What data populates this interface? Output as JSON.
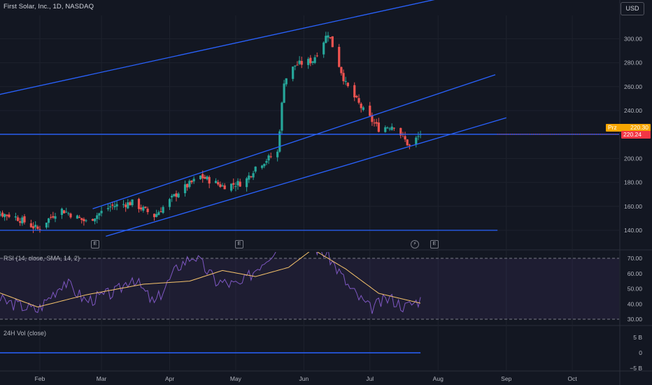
{
  "header": {
    "symbol_line": "First Solar, Inc., 1D, NASDAQ",
    "currency": "USD"
  },
  "tags": {
    "prz": "Prz",
    "prz_value": "220.30",
    "last_price": "220.24"
  },
  "events": [
    {
      "icon": "E",
      "name": "earnings-icon"
    },
    {
      "icon": "E",
      "name": "earnings-icon"
    },
    {
      "icon": "⚡",
      "name": "split-icon"
    },
    {
      "icon": "E",
      "name": "earnings-icon"
    }
  ],
  "colors": {
    "background": "#131722",
    "up": "#26a69a",
    "down": "#ef5350",
    "channel": "#2962ff",
    "rsi": "#7e57c2",
    "rsi_ma": "#f7c46c",
    "prz_tag": "#f7a600",
    "price_tag": "#f23645"
  },
  "chart_data": [
    {
      "type": "candlestick",
      "title": "First Solar, Inc., 1D, NASDAQ",
      "currency": "USD",
      "y_ticks": [
        140,
        160,
        180,
        200,
        220,
        240,
        260,
        280,
        300
      ],
      "ylim": [
        134,
        320
      ],
      "x_ticks": [
        "Feb",
        "Mar",
        "Apr",
        "May",
        "Jun",
        "Jul",
        "Aug",
        "Sep",
        "Oct"
      ],
      "last_price": 220.24,
      "prz": 220.3,
      "anchors": [
        {
          "date": "Jan 10",
          "close": 155
        },
        {
          "date": "Jan 20",
          "close": 152
        },
        {
          "date": "Jan 31",
          "close": 141
        },
        {
          "date": "Feb 10",
          "close": 158
        },
        {
          "date": "Feb 22",
          "close": 147
        },
        {
          "date": "Mar 5",
          "close": 160
        },
        {
          "date": "Mar 15",
          "close": 163
        },
        {
          "date": "Mar 25",
          "close": 152
        },
        {
          "date": "Apr 5",
          "close": 172
        },
        {
          "date": "Apr 15",
          "close": 185
        },
        {
          "date": "Apr 25",
          "close": 177
        },
        {
          "date": "May 5",
          "close": 180
        },
        {
          "date": "May 10",
          "close": 193
        },
        {
          "date": "May 20",
          "close": 205
        },
        {
          "date": "May 23",
          "close": 265
        },
        {
          "date": "May 28",
          "close": 278
        },
        {
          "date": "Jun 5",
          "close": 282
        },
        {
          "date": "Jun 12",
          "close": 305
        },
        {
          "date": "Jun 20",
          "close": 262
        },
        {
          "date": "Jun 28",
          "close": 240
        },
        {
          "date": "Jul 5",
          "close": 225
        },
        {
          "date": "Jul 12",
          "close": 228
        },
        {
          "date": "Jul 19",
          "close": 210
        },
        {
          "date": "Jul 24",
          "close": 220.24
        }
      ],
      "channel_lines": [
        {
          "from": {
            "date": "Jan 5",
            "value": 250
          },
          "to": {
            "date": "Aug 30",
            "value": 345
          }
        },
        {
          "from": {
            "date": "Feb 25",
            "value": 158
          },
          "to": {
            "date": "Aug 27",
            "value": 270
          }
        },
        {
          "from": {
            "date": "Mar 3",
            "value": 135
          },
          "to": {
            "date": "Sep 1",
            "value": 234
          }
        }
      ],
      "horizontal_lines": [
        {
          "value": 220.24,
          "name": "price-level"
        },
        {
          "value": 140,
          "name": "support-level"
        }
      ]
    },
    {
      "type": "line",
      "title": "RSI (14, close, SMA, 14, 2)",
      "y_ticks": [
        "70.00",
        "60.00",
        "50.00",
        "40.00",
        "30.00"
      ],
      "ylim": [
        30,
        70
      ],
      "bands": [
        30,
        70
      ],
      "series": [
        {
          "name": "RSI",
          "anchors": [
            {
              "date": "Jan 5",
              "value": 45
            },
            {
              "date": "Jan 15",
              "value": 42
            },
            {
              "date": "Jan 31",
              "value": 36
            },
            {
              "date": "Feb 12",
              "value": 55
            },
            {
              "date": "Feb 22",
              "value": 42
            },
            {
              "date": "Mar 8",
              "value": 48
            },
            {
              "date": "Mar 15",
              "value": 58
            },
            {
              "date": "Mar 25",
              "value": 40
            },
            {
              "date": "Apr 5",
              "value": 65
            },
            {
              "date": "Apr 12",
              "value": 72
            },
            {
              "date": "Apr 22",
              "value": 55
            },
            {
              "date": "May 3",
              "value": 52
            },
            {
              "date": "May 12",
              "value": 66
            },
            {
              "date": "May 23",
              "value": 82
            },
            {
              "date": "Jun 5",
              "value": 78
            },
            {
              "date": "Jun 12",
              "value": 72
            },
            {
              "date": "Jun 22",
              "value": 50
            },
            {
              "date": "Jul 1",
              "value": 37
            },
            {
              "date": "Jul 10",
              "value": 44
            },
            {
              "date": "Jul 17",
              "value": 38
            },
            {
              "date": "Jul 24",
              "value": 43
            }
          ]
        },
        {
          "name": "RSI-based MA",
          "anchors": [
            {
              "date": "Jan 5",
              "value": 52
            },
            {
              "date": "Jan 31",
              "value": 38
            },
            {
              "date": "Feb 22",
              "value": 46
            },
            {
              "date": "Mar 20",
              "value": 53
            },
            {
              "date": "Apr 10",
              "value": 55
            },
            {
              "date": "Apr 25",
              "value": 62
            },
            {
              "date": "May 10",
              "value": 58
            },
            {
              "date": "May 25",
              "value": 64
            },
            {
              "date": "Jun 5",
              "value": 76
            },
            {
              "date": "Jun 20",
              "value": 63
            },
            {
              "date": "Jul 5",
              "value": 47
            },
            {
              "date": "Jul 24",
              "value": 40.5
            }
          ]
        }
      ]
    },
    {
      "type": "line",
      "title": "24H Vol (close)",
      "y_ticks": [
        "5 B",
        "0",
        "−5 B"
      ],
      "ylim": [
        -5,
        5
      ],
      "series": [
        {
          "name": "24H Vol",
          "anchors": [
            {
              "date": "Jan 5",
              "value": 0
            },
            {
              "date": "Jul 24",
              "value": 0
            }
          ]
        }
      ]
    }
  ]
}
